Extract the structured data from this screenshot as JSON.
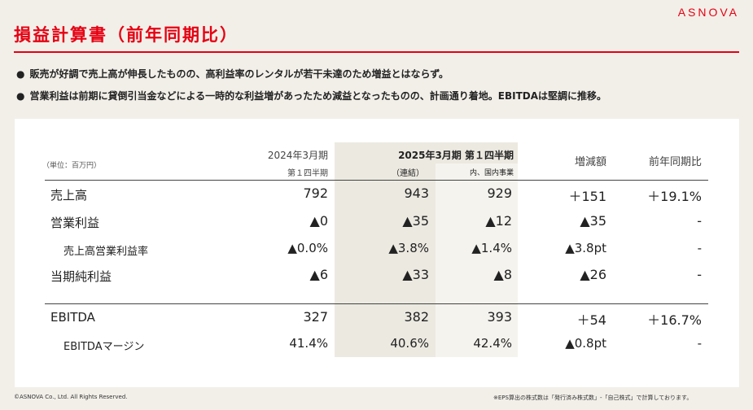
{
  "brand": "ASNOVA",
  "title": "損益計算書（前年同期比）",
  "bullets": [
    "販売が好調で売上高が伸長したものの、高利益率のレンタルが若干未達のため増益とはならず。",
    "営業利益は前期に貸倒引当金などによる一時的な利益増があったため減益となったものの、計画通り着地。EBITDAは堅調に推移。"
  ],
  "table": {
    "unit": "（単位：百万円）",
    "col_prev_line1": "2024年3月期",
    "col_prev_line2": "第１四半期",
    "col_curr": "2025年3月期 第１四半期",
    "col_consol": "（連結）",
    "col_domestic": "内、国内事業",
    "col_diff": "増減額",
    "col_yoy": "前年同期比",
    "rows": [
      {
        "label": "売上高",
        "prev": "792",
        "consol": "943",
        "domestic": "929",
        "diff": "＋151",
        "yoy": "＋19.1%"
      },
      {
        "label": "営業利益",
        "prev": "▲0",
        "consol": "▲35",
        "domestic": "▲12",
        "diff": "▲35",
        "yoy": "-"
      },
      {
        "label": "売上高営業利益率",
        "prev": "▲0.0%",
        "consol": "▲3.8%",
        "domestic": "▲1.4%",
        "diff": "▲3.8pt",
        "yoy": "-"
      },
      {
        "label": "当期純利益",
        "prev": "▲6",
        "consol": "▲33",
        "domestic": "▲8",
        "diff": "▲26",
        "yoy": "-"
      },
      {
        "label": "EBITDA",
        "prev": "327",
        "consol": "382",
        "domestic": "393",
        "diff": "＋54",
        "yoy": "＋16.7%"
      },
      {
        "label": "EBITDAマージン",
        "prev": "41.4%",
        "consol": "40.6%",
        "domestic": "42.4%",
        "diff": "▲0.8pt",
        "yoy": "-"
      }
    ]
  },
  "footer": {
    "copyright": "©ASNOVA Co., Ltd. All Rights Reserved.",
    "note": "※EPS算出の株式数は「発行済み株式数」-「自己株式」で計算しております。"
  },
  "colors": {
    "accent": "#e60012",
    "background": "#f2efe9"
  }
}
